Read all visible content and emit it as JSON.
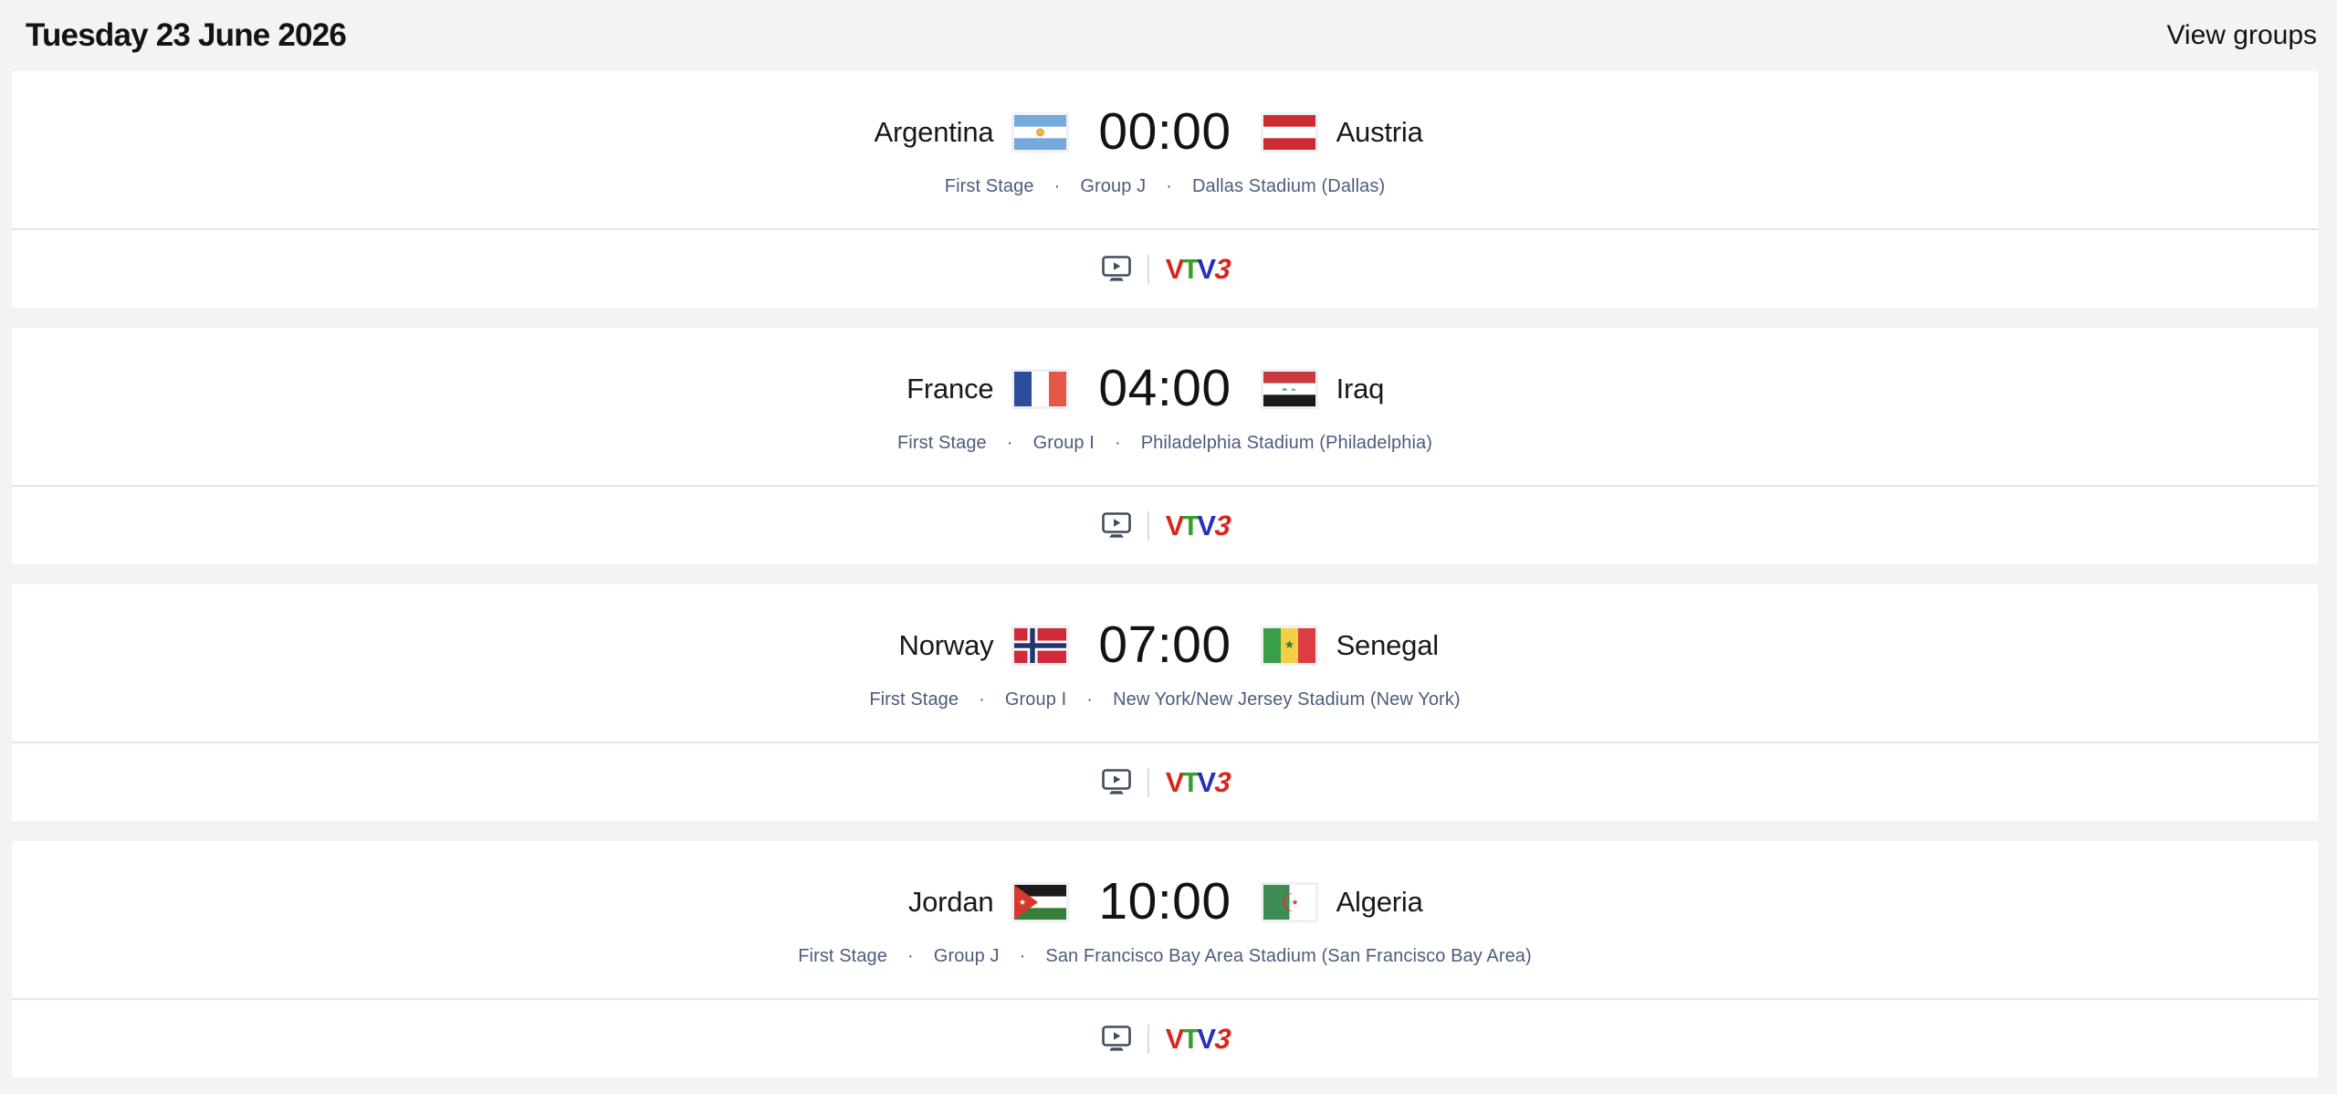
{
  "header": {
    "date": "Tuesday 23 June 2026",
    "view_groups": "View groups"
  },
  "separator": "·",
  "broadcast": {
    "tv_icon": "tv-play-icon",
    "logo": {
      "name": "VTV3",
      "letters": [
        {
          "ch": "V",
          "color": "#da251d",
          "italic": false
        },
        {
          "ch": "T",
          "color": "#37a02c",
          "italic": false
        },
        {
          "ch": "V",
          "color": "#2a2fb8",
          "italic": false
        },
        {
          "ch": "3",
          "color": "#da251d",
          "italic": true
        }
      ]
    }
  },
  "matches": [
    {
      "time": "00:00",
      "home": {
        "name": "Argentina",
        "flag": "argentina"
      },
      "away": {
        "name": "Austria",
        "flag": "austria"
      },
      "stage": "First Stage",
      "group": "Group J",
      "venue": "Dallas Stadium (Dallas)",
      "broadcaster": "VTV3"
    },
    {
      "time": "04:00",
      "home": {
        "name": "France",
        "flag": "france"
      },
      "away": {
        "name": "Iraq",
        "flag": "iraq"
      },
      "stage": "First Stage",
      "group": "Group I",
      "venue": "Philadelphia Stadium (Philadelphia)",
      "broadcaster": "VTV3"
    },
    {
      "time": "07:00",
      "home": {
        "name": "Norway",
        "flag": "norway"
      },
      "away": {
        "name": "Senegal",
        "flag": "senegal"
      },
      "stage": "First Stage",
      "group": "Group I",
      "venue": "New York/New Jersey Stadium (New York)",
      "broadcaster": "VTV3"
    },
    {
      "time": "10:00",
      "home": {
        "name": "Jordan",
        "flag": "jordan"
      },
      "away": {
        "name": "Algeria",
        "flag": "algeria"
      },
      "stage": "First Stage",
      "group": "Group J",
      "venue": "San Francisco Bay Area Stadium (San Francisco Bay Area)",
      "broadcaster": "VTV3"
    }
  ],
  "colors": {
    "page_bg": "#f3f3f1",
    "card_bg": "#ffffff",
    "divider": "#e0e4ee",
    "info_text": "#4c5c7e",
    "icon_slate": "#404d5f"
  }
}
